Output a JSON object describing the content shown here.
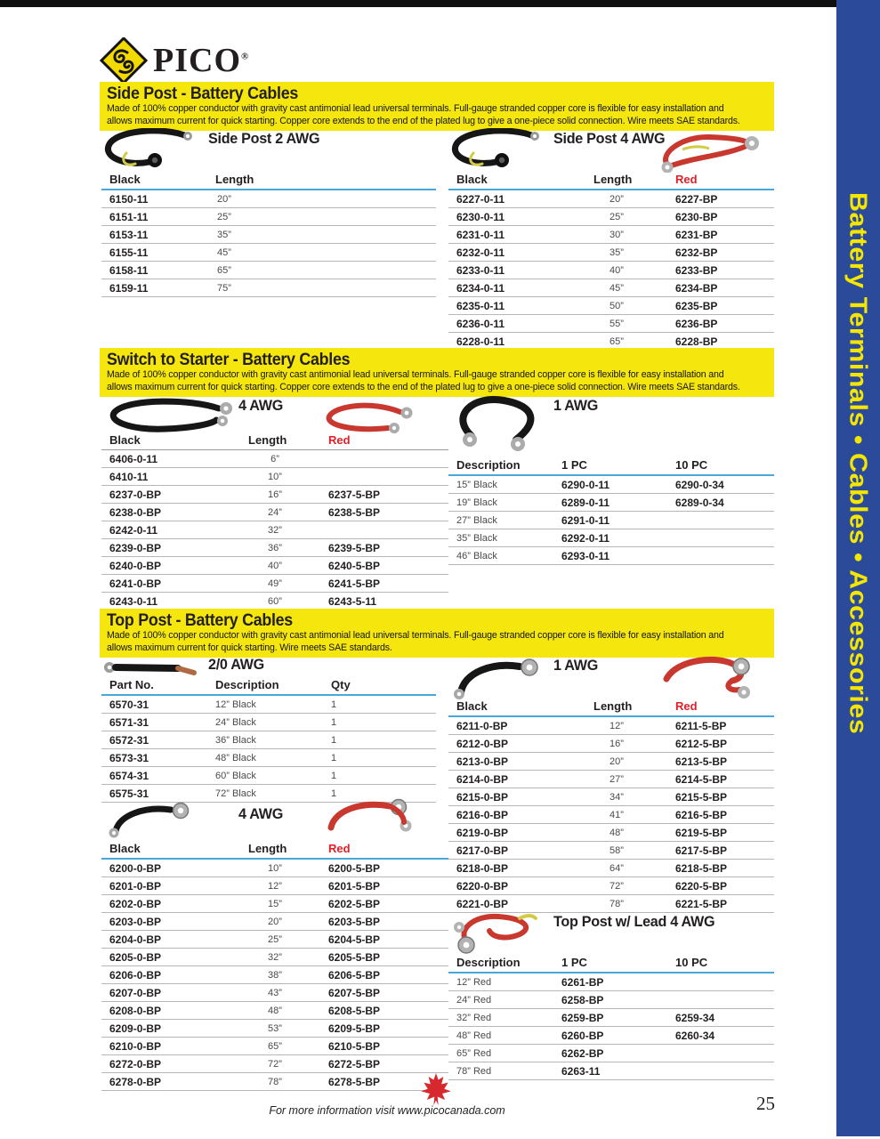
{
  "logo": {
    "brand": "PICO",
    "registered": "®"
  },
  "sidebar": {
    "text": "Battery Terminals • Cables • Accessories",
    "bg": "#2c4a9a",
    "fg": "#f3e600"
  },
  "colors": {
    "banner_yellow": "#f5e70e",
    "header_line_blue": "#4aa7d9",
    "red_text": "#e31e26",
    "leaf_red": "#d7282f"
  },
  "footer": {
    "note": "For more information visit www.picocanada.com",
    "page_number": "25"
  },
  "sections": {
    "side_post": {
      "title": "Side Post - Battery Cables",
      "desc_line1": "Made of 100% copper conductor with gravity cast antimonial lead universal terminals. Full-gauge stranded copper core is flexible for easy installation and",
      "desc_line2": "allows maximum current for quick starting. Copper core extends to the end of the plated lug to give a one-piece solid connection. Wire meets SAE standards.",
      "t2": {
        "heading": "Side Post 2 AWG",
        "headers": [
          "Black",
          "Length"
        ],
        "rows": [
          [
            "6150-11",
            "20”"
          ],
          [
            "6151-11",
            "25”"
          ],
          [
            "6153-11",
            "35”"
          ],
          [
            "6155-11",
            "45”"
          ],
          [
            "6158-11",
            "65”"
          ],
          [
            "6159-11",
            "75”"
          ]
        ]
      },
      "t4": {
        "heading": "Side Post 4 AWG",
        "headers": [
          "Black",
          "Length",
          "Red"
        ],
        "header_colors": [
          "",
          "",
          "#e31e26"
        ],
        "rows": [
          [
            "6227-0-11",
            "20”",
            "6227-BP"
          ],
          [
            "6230-0-11",
            "25”",
            "6230-BP"
          ],
          [
            "6231-0-11",
            "30”",
            "6231-BP"
          ],
          [
            "6232-0-11",
            "35”",
            "6232-BP"
          ],
          [
            "6233-0-11",
            "40”",
            "6233-BP"
          ],
          [
            "6234-0-11",
            "45”",
            "6234-BP"
          ],
          [
            "6235-0-11",
            "50”",
            "6235-BP"
          ],
          [
            "6236-0-11",
            "55”",
            "6236-BP"
          ],
          [
            "6228-0-11",
            "65”",
            "6228-BP"
          ]
        ]
      }
    },
    "switch_starter": {
      "title": "Switch to Starter - Battery Cables",
      "desc_line1": "Made of 100% copper conductor with gravity cast antimonial lead universal terminals. Full-gauge stranded copper core is flexible for easy installation and",
      "desc_line2": "allows maximum current for quick starting. Copper core extends to the end of the plated lug to give a one-piece solid connection. Wire meets SAE standards.",
      "t4awg": {
        "heading": "4 AWG",
        "headers": [
          "Black",
          "Length",
          "Red"
        ],
        "header_colors": [
          "",
          "",
          "#e31e26"
        ],
        "rows": [
          [
            "6406-0-11",
            "6”",
            ""
          ],
          [
            "6410-11",
            "10”",
            ""
          ],
          [
            "6237-0-BP",
            "16”",
            "6237-5-BP"
          ],
          [
            "6238-0-BP",
            "24”",
            "6238-5-BP"
          ],
          [
            "6242-0-11",
            "32”",
            ""
          ],
          [
            "6239-0-BP",
            "36”",
            "6239-5-BP"
          ],
          [
            "6240-0-BP",
            "40”",
            "6240-5-BP"
          ],
          [
            "6241-0-BP",
            "49”",
            "6241-5-BP"
          ],
          [
            "6243-0-11",
            "60”",
            "6243-5-11"
          ]
        ]
      },
      "t1awg": {
        "heading": "1 AWG",
        "headers": [
          "Description",
          "1 PC",
          "10 PC"
        ],
        "rows": [
          [
            "15” Black",
            "6290-0-11",
            "6290-0-34"
          ],
          [
            "19” Black",
            "6289-0-11",
            "6289-0-34"
          ],
          [
            "27” Black",
            "6291-0-11",
            ""
          ],
          [
            "35” Black",
            "6292-0-11",
            ""
          ],
          [
            "46” Black",
            "6293-0-11",
            ""
          ]
        ]
      }
    },
    "top_post": {
      "title": "Top Post - Battery Cables",
      "desc_line1": "Made of 100% copper conductor with gravity cast antimonial lead universal terminals. Full-gauge stranded copper core is flexible for easy installation and",
      "desc_line2": "allows maximum current for quick starting. Wire meets SAE standards.",
      "t20awg": {
        "heading": "2/0 AWG",
        "headers": [
          "Part No.",
          "Description",
          "Qty"
        ],
        "rows": [
          [
            "6570-31",
            "12” Black",
            "1"
          ],
          [
            "6571-31",
            "24” Black",
            "1"
          ],
          [
            "6572-31",
            "36” Black",
            "1"
          ],
          [
            "6573-31",
            "48” Black",
            "1"
          ],
          [
            "6574-31",
            "60” Black",
            "1"
          ],
          [
            "6575-31",
            "72” Black",
            "1"
          ]
        ]
      },
      "t1awg": {
        "heading": "1 AWG",
        "headers": [
          "Black",
          "Length",
          "Red"
        ],
        "header_colors": [
          "",
          "",
          "#e31e26"
        ],
        "rows": [
          [
            "6211-0-BP",
            "12”",
            "6211-5-BP"
          ],
          [
            "6212-0-BP",
            "16”",
            "6212-5-BP"
          ],
          [
            "6213-0-BP",
            "20”",
            "6213-5-BP"
          ],
          [
            "6214-0-BP",
            "27”",
            "6214-5-BP"
          ],
          [
            "6215-0-BP",
            "34”",
            "6215-5-BP"
          ],
          [
            "6216-0-BP",
            "41”",
            "6216-5-BP"
          ],
          [
            "6219-0-BP",
            "48”",
            "6219-5-BP"
          ],
          [
            "6217-0-BP",
            "58”",
            "6217-5-BP"
          ],
          [
            "6218-0-BP",
            "64”",
            "6218-5-BP"
          ],
          [
            "6220-0-BP",
            "72”",
            "6220-5-BP"
          ],
          [
            "6221-0-BP",
            "78”",
            "6221-5-BP"
          ]
        ]
      },
      "t4awg": {
        "heading": "4 AWG",
        "headers": [
          "Black",
          "Length",
          "Red"
        ],
        "header_colors": [
          "",
          "",
          "#e31e26"
        ],
        "rows": [
          [
            "6200-0-BP",
            "10”",
            "6200-5-BP"
          ],
          [
            "6201-0-BP",
            "12”",
            "6201-5-BP"
          ],
          [
            "6202-0-BP",
            "15”",
            "6202-5-BP"
          ],
          [
            "6203-0-BP",
            "20”",
            "6203-5-BP"
          ],
          [
            "6204-0-BP",
            "25”",
            "6204-5-BP"
          ],
          [
            "6205-0-BP",
            "32”",
            "6205-5-BP"
          ],
          [
            "6206-0-BP",
            "38”",
            "6206-5-BP"
          ],
          [
            "6207-0-BP",
            "43”",
            "6207-5-BP"
          ],
          [
            "6208-0-BP",
            "48”",
            "6208-5-BP"
          ],
          [
            "6209-0-BP",
            "53”",
            "6209-5-BP"
          ],
          [
            "6210-0-BP",
            "65”",
            "6210-5-BP"
          ],
          [
            "6272-0-BP",
            "72”",
            "6272-5-BP"
          ],
          [
            "6278-0-BP",
            "78”",
            "6278-5-BP"
          ]
        ]
      },
      "tlead": {
        "heading": "Top Post w/ Lead 4 AWG",
        "headers": [
          "Description",
          "1 PC",
          "10 PC"
        ],
        "rows": [
          [
            "12” Red",
            "6261-BP",
            ""
          ],
          [
            "24” Red",
            "6258-BP",
            ""
          ],
          [
            "32” Red",
            "6259-BP",
            "6259-34"
          ],
          [
            "48” Red",
            "6260-BP",
            "6260-34"
          ],
          [
            "65” Red",
            "6262-BP",
            ""
          ],
          [
            "78” Red",
            "6263-11",
            ""
          ]
        ]
      }
    }
  }
}
